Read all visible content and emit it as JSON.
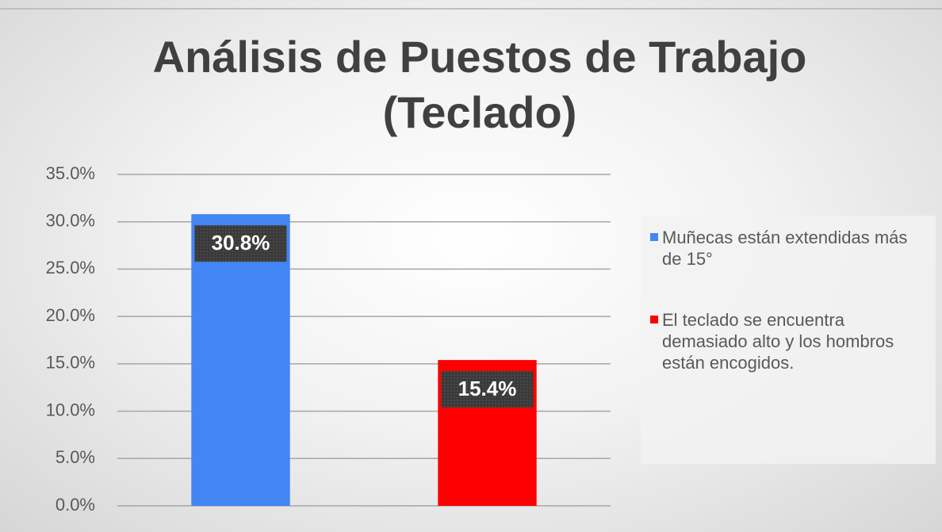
{
  "chart_data": {
    "type": "bar",
    "title": [
      "Análisis de Puestos de Trabajo",
      "(Teclado)"
    ],
    "categories": [
      null
    ],
    "series": [
      {
        "name": "Muñecas están extendidas más de 15°",
        "color": "#4285f4",
        "values": [
          30.8
        ],
        "value_labels": [
          "30.8%"
        ]
      },
      {
        "name": "El teclado se encuentra demasiado alto y los hombros están encogidos.",
        "color": "#ff0000",
        "values": [
          15.4
        ],
        "value_labels": [
          "15.4%"
        ]
      }
    ],
    "ylim": [
      0,
      35
    ],
    "yticks": [
      {
        "value": 0,
        "label": "0.0%"
      },
      {
        "value": 5,
        "label": "5.0%"
      },
      {
        "value": 10,
        "label": "10.0%"
      },
      {
        "value": 15,
        "label": "15.0%"
      },
      {
        "value": 20,
        "label": "20.0%"
      },
      {
        "value": 25,
        "label": "25.0%"
      },
      {
        "value": 30,
        "label": "30.0%"
      },
      {
        "value": 35,
        "label": "35.0%"
      }
    ],
    "grid": true,
    "legend": "right"
  }
}
